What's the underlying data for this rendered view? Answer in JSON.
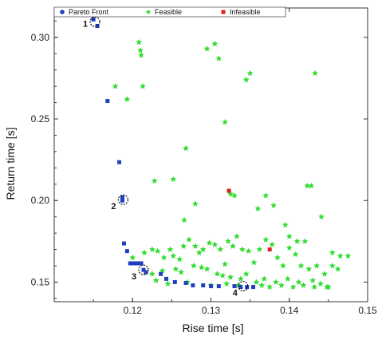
{
  "chart_data": {
    "type": "scatter",
    "title": "",
    "xlabel": "Rise time [s]",
    "ylabel": "Return time [s]",
    "xlim": [
      0.11,
      0.15
    ],
    "ylim": [
      0.138,
      0.318
    ],
    "x_ticks": [
      0.12,
      0.13,
      0.14,
      0.15
    ],
    "x_tick_labels": [
      "0.12",
      "0.13",
      "0.14",
      "0.15"
    ],
    "y_ticks": [
      0.15,
      0.2,
      0.25,
      0.3
    ],
    "y_tick_labels": [
      "0.15",
      "0.20",
      "0.25",
      "0.30"
    ],
    "grid": false,
    "legend_position": "top",
    "legend": [
      "Pareto Front",
      "Feasible",
      "Infeasible"
    ],
    "colors": {
      "pareto": "#1f3fbf",
      "feasible": "#33dd33",
      "infeasible": "#dd1f1f",
      "highlight": "#111111"
    },
    "series": [
      {
        "name": "Pareto Front",
        "marker": "square",
        "x": [
          0.115,
          0.1155,
          0.1168,
          0.1183,
          0.1187,
          0.1187,
          0.1189,
          0.1193,
          0.1197,
          0.1201,
          0.1205,
          0.1208,
          0.1211,
          0.1214,
          0.1217,
          0.1236,
          0.1243,
          0.1254,
          0.1268,
          0.1277,
          0.129,
          0.13,
          0.131,
          0.133,
          0.1338,
          0.1346,
          0.1354
        ],
        "y": [
          0.311,
          0.307,
          0.261,
          0.2235,
          0.202,
          0.2,
          0.1737,
          0.169,
          0.1615,
          0.1615,
          0.1615,
          0.1615,
          0.1615,
          0.1575,
          0.156,
          0.155,
          0.152,
          0.15,
          0.1495,
          0.148,
          0.148,
          0.1475,
          0.1475,
          0.1475,
          0.147,
          0.147,
          0.147
        ]
      },
      {
        "name": "Feasible",
        "marker": "star",
        "x": [
          0.1178,
          0.1193,
          0.1208,
          0.121,
          0.1211,
          0.1213,
          0.1228,
          0.1252,
          0.1266,
          0.1268,
          0.1295,
          0.1305,
          0.131,
          0.1318,
          0.1325,
          0.133,
          0.1345,
          0.135,
          0.136,
          0.14,
          0.1423,
          0.1428,
          0.1433,
          0.1441,
          0.1455,
          0.128,
          0.137,
          0.138,
          0.1395,
          0.141,
          0.142,
          0.1465,
          0.1475,
          0.12,
          0.1215,
          0.1225,
          0.1232,
          0.124,
          0.1248,
          0.1252,
          0.126,
          0.1265,
          0.1272,
          0.128,
          0.1285,
          0.129,
          0.1298,
          0.1305,
          0.1312,
          0.1318,
          0.1322,
          0.1328,
          0.1333,
          0.134,
          0.1348,
          0.1355,
          0.1362,
          0.137,
          0.1378,
          0.1385,
          0.1392,
          0.14,
          0.1408,
          0.1415,
          0.1425,
          0.1435,
          0.1445,
          0.1455,
          0.1462,
          0.1225,
          0.1238,
          0.1255,
          0.1262,
          0.1278,
          0.1288,
          0.1295,
          0.1308,
          0.1315,
          0.1325,
          0.1338,
          0.1345,
          0.1358,
          0.1368,
          0.1383,
          0.1398,
          0.1412,
          0.143,
          0.144,
          0.145,
          0.123,
          0.1245,
          0.127,
          0.13,
          0.132,
          0.1335,
          0.1365,
          0.1375,
          0.139,
          0.1405,
          0.1418,
          0.1432,
          0.1448
        ],
        "y": [
          0.27,
          0.262,
          0.297,
          0.292,
          0.289,
          0.27,
          0.212,
          0.213,
          0.188,
          0.232,
          0.293,
          0.296,
          0.287,
          0.248,
          0.204,
          0.203,
          0.274,
          0.278,
          0.195,
          0.178,
          0.209,
          0.209,
          0.278,
          0.19,
          0.168,
          0.198,
          0.203,
          0.197,
          0.185,
          0.175,
          0.175,
          0.166,
          0.166,
          0.165,
          0.168,
          0.17,
          0.169,
          0.165,
          0.17,
          0.166,
          0.164,
          0.172,
          0.176,
          0.172,
          0.168,
          0.17,
          0.174,
          0.173,
          0.17,
          0.161,
          0.175,
          0.172,
          0.178,
          0.17,
          0.169,
          0.162,
          0.17,
          0.176,
          0.173,
          0.165,
          0.16,
          0.171,
          0.167,
          0.16,
          0.158,
          0.16,
          0.155,
          0.16,
          0.158,
          0.155,
          0.157,
          0.158,
          0.156,
          0.16,
          0.159,
          0.158,
          0.155,
          0.154,
          0.153,
          0.152,
          0.155,
          0.15,
          0.152,
          0.15,
          0.152,
          0.15,
          0.151,
          0.149,
          0.147,
          0.151,
          0.149,
          0.15,
          0.148,
          0.149,
          0.148,
          0.148,
          0.147,
          0.148,
          0.147,
          0.148,
          0.147,
          0.147
        ]
      },
      {
        "name": "Infeasible",
        "marker": "square",
        "x": [
          0.1323,
          0.1375
        ],
        "y": [
          0.206,
          0.17
        ]
      }
    ],
    "annotations": [
      {
        "label": "1",
        "x": 0.1152,
        "y": 0.3095
      },
      {
        "label": "2",
        "x": 0.1188,
        "y": 0.2005
      },
      {
        "label": "3",
        "x": 0.1214,
        "y": 0.1575
      },
      {
        "label": "4",
        "x": 0.1341,
        "y": 0.1475
      }
    ]
  }
}
